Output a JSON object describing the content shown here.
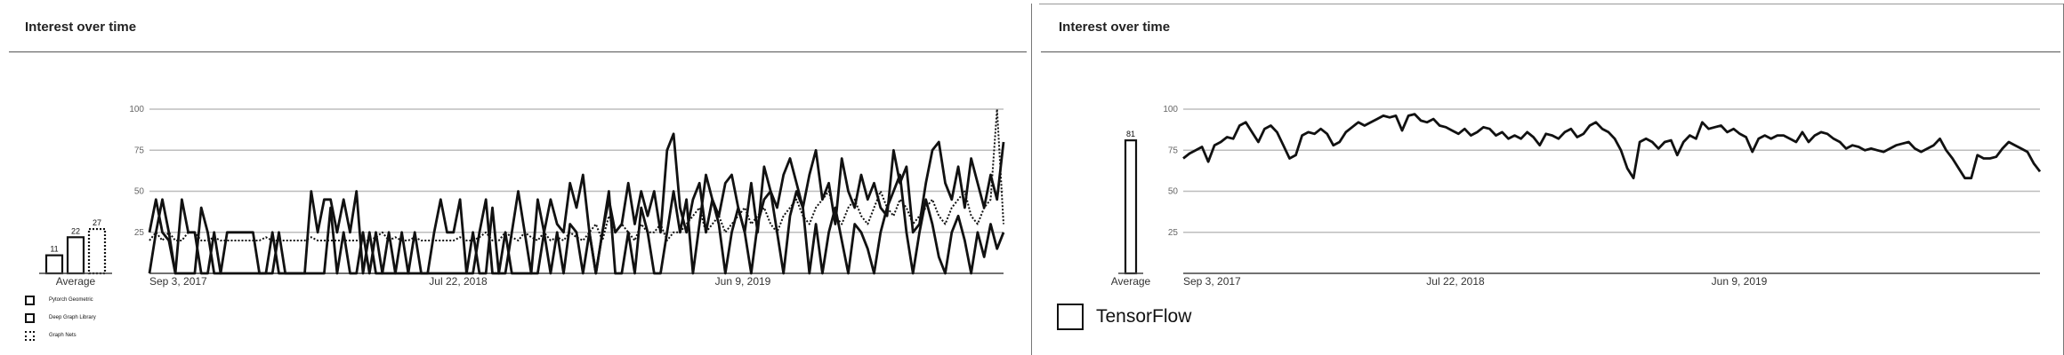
{
  "panels": [
    {
      "title": "Interest over time",
      "average_label": "Average",
      "legend": [
        {
          "label": "Pytorch Geometric",
          "style": "solid"
        },
        {
          "label": "Deep Graph Library",
          "style": "solid"
        },
        {
          "label": "Graph Nets",
          "style": "dotted"
        }
      ]
    },
    {
      "title": "Interest over time",
      "average_label": "Average",
      "legend": [
        {
          "label": "TensorFlow",
          "style": "solid"
        }
      ]
    }
  ],
  "colors": {
    "line": "#111111",
    "grid": "#bdbdbd",
    "axis": "#444444",
    "text": "#333333"
  },
  "chart_data": [
    {
      "type": "line",
      "title": "Interest over time",
      "y_ticks": [
        25,
        50,
        75,
        100
      ],
      "ylim": [
        0,
        100
      ],
      "x_tick_labels": [
        "Sep 3, 2017",
        "Jul 22, 2018",
        "Jun 9, 2019"
      ],
      "grid": true,
      "legend_position": "bottom-left",
      "averages": [
        {
          "series": "Pytorch Geometric",
          "value": 11
        },
        {
          "series": "Deep Graph Library",
          "value": 22
        },
        {
          "series": "Graph Nets",
          "value": 27
        }
      ],
      "series": [
        {
          "name": "Pytorch Geometric",
          "style": "solid",
          "values": [
            0,
            25,
            45,
            25,
            0,
            0,
            0,
            0,
            40,
            25,
            0,
            0,
            0,
            0,
            0,
            0,
            0,
            0,
            0,
            25,
            0,
            0,
            0,
            0,
            0,
            0,
            0,
            0,
            40,
            0,
            25,
            0,
            0,
            25,
            0,
            25,
            0,
            25,
            0,
            0,
            0,
            0,
            0,
            0,
            0,
            0,
            0,
            0,
            0,
            0,
            25,
            0,
            0,
            40,
            0,
            25,
            0,
            0,
            0,
            0,
            0,
            25,
            0,
            25,
            0,
            30,
            25,
            0,
            25,
            0,
            25,
            50,
            0,
            0,
            25,
            0,
            40,
            25,
            0,
            0,
            25,
            50,
            25,
            45,
            0,
            30,
            60,
            45,
            30,
            0,
            25,
            40,
            25,
            0,
            30,
            45,
            50,
            25,
            0,
            35,
            50,
            40,
            0,
            30,
            0,
            25,
            40,
            20,
            0,
            30,
            25,
            15,
            0,
            25,
            40,
            50,
            60,
            25,
            0,
            25,
            45,
            30,
            10,
            0,
            25,
            35,
            20,
            0,
            25,
            10,
            30,
            15,
            25
          ]
        },
        {
          "name": "Deep Graph Library",
          "style": "solid",
          "values": [
            25,
            45,
            25,
            20,
            0,
            45,
            25,
            25,
            0,
            0,
            25,
            0,
            25,
            25,
            25,
            25,
            25,
            0,
            0,
            0,
            25,
            0,
            0,
            0,
            0,
            50,
            25,
            45,
            45,
            25,
            45,
            25,
            50,
            0,
            25,
            0,
            0,
            0,
            0,
            25,
            0,
            25,
            0,
            0,
            25,
            45,
            25,
            25,
            45,
            0,
            0,
            25,
            45,
            0,
            0,
            0,
            25,
            50,
            25,
            0,
            45,
            25,
            45,
            30,
            25,
            55,
            40,
            60,
            25,
            0,
            25,
            45,
            25,
            30,
            55,
            30,
            50,
            35,
            50,
            25,
            75,
            85,
            40,
            25,
            45,
            55,
            25,
            45,
            35,
            55,
            60,
            40,
            25,
            55,
            25,
            65,
            50,
            40,
            60,
            70,
            55,
            40,
            60,
            75,
            45,
            55,
            30,
            70,
            50,
            40,
            60,
            45,
            55,
            40,
            35,
            75,
            55,
            65,
            25,
            30,
            55,
            75,
            80,
            55,
            45,
            65,
            40,
            70,
            55,
            40,
            60,
            45,
            80
          ]
        },
        {
          "name": "Graph Nets",
          "style": "dotted",
          "values": [
            20,
            25,
            20,
            25,
            20,
            20,
            25,
            25,
            20,
            20,
            22,
            20,
            20,
            20,
            20,
            20,
            20,
            20,
            22,
            20,
            20,
            20,
            20,
            20,
            20,
            22,
            20,
            20,
            20,
            20,
            20,
            20,
            20,
            20,
            20,
            22,
            25,
            20,
            22,
            20,
            20,
            22,
            20,
            20,
            20,
            20,
            20,
            20,
            22,
            20,
            20,
            22,
            25,
            20,
            20,
            25,
            22,
            20,
            25,
            22,
            20,
            25,
            20,
            22,
            20,
            25,
            22,
            20,
            25,
            30,
            20,
            35,
            25,
            30,
            25,
            20,
            30,
            25,
            25,
            30,
            20,
            25,
            25,
            30,
            35,
            40,
            25,
            30,
            35,
            25,
            30,
            35,
            40,
            30,
            35,
            40,
            30,
            25,
            35,
            40,
            45,
            35,
            30,
            40,
            45,
            50,
            35,
            30,
            40,
            45,
            35,
            30,
            40,
            50,
            40,
            35,
            45,
            40,
            30,
            35,
            40,
            45,
            35,
            30,
            40,
            45,
            50,
            35,
            30,
            40,
            45,
            100,
            30
          ]
        }
      ]
    },
    {
      "type": "line",
      "title": "Interest over time",
      "y_ticks": [
        25,
        50,
        75,
        100
      ],
      "ylim": [
        0,
        100
      ],
      "x_tick_labels": [
        "Sep 3, 2017",
        "Jul 22, 2018",
        "Jun 9, 2019"
      ],
      "grid": true,
      "legend_position": "bottom-left",
      "averages": [
        {
          "series": "TensorFlow",
          "value": 81
        }
      ],
      "series": [
        {
          "name": "TensorFlow",
          "style": "solid",
          "values": [
            70,
            73,
            75,
            77,
            68,
            78,
            80,
            83,
            82,
            90,
            92,
            86,
            80,
            88,
            90,
            86,
            78,
            70,
            72,
            84,
            86,
            85,
            88,
            85,
            78,
            80,
            86,
            89,
            92,
            90,
            92,
            94,
            96,
            95,
            96,
            87,
            96,
            97,
            93,
            92,
            94,
            90,
            89,
            87,
            85,
            88,
            84,
            86,
            89,
            88,
            84,
            86,
            82,
            84,
            82,
            86,
            83,
            78,
            85,
            84,
            82,
            86,
            88,
            83,
            85,
            90,
            92,
            88,
            86,
            82,
            75,
            64,
            58,
            80,
            82,
            80,
            76,
            80,
            81,
            72,
            80,
            84,
            82,
            92,
            88,
            89,
            90,
            86,
            88,
            85,
            83,
            74,
            82,
            84,
            82,
            84,
            84,
            82,
            80,
            86,
            80,
            84,
            86,
            85,
            82,
            80,
            76,
            78,
            77,
            75,
            76,
            75,
            74,
            76,
            78,
            79,
            80,
            76,
            74,
            76,
            78,
            82,
            75,
            70,
            64,
            58,
            58,
            72,
            70,
            70,
            71,
            76,
            80,
            78,
            76,
            74,
            67,
            62
          ]
        }
      ]
    }
  ]
}
